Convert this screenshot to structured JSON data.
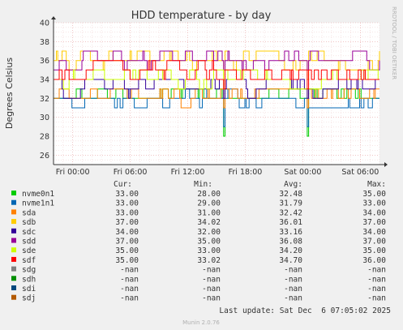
{
  "chart_data": {
    "type": "line",
    "title": "HDD temperature - by day",
    "ylabel": "Degrees Celsius",
    "side_label": "RRDTOOL / TOBI OETIKER",
    "ylim": [
      25,
      40
    ],
    "yticks": [
      "26",
      "28",
      "30",
      "32",
      "34",
      "36",
      "38",
      "40"
    ],
    "xlim_hours": [
      -2,
      32
    ],
    "xticks": [
      {
        "label": "Fri 00:00",
        "h": 0
      },
      {
        "label": "Fri 06:00",
        "h": 6
      },
      {
        "label": "Fri 12:00",
        "h": 12
      },
      {
        "label": "Fri 18:00",
        "h": 18
      },
      {
        "label": "Sat 00:00",
        "h": 24
      },
      {
        "label": "Sat 06:00",
        "h": 30
      }
    ],
    "grid": true,
    "legend_headers": {
      "cur": "Cur:",
      "min": "Min:",
      "avg": "Avg:",
      "max": "Max:"
    },
    "series": [
      {
        "name": "nvme0n1",
        "color": "#00cc00",
        "cur": "33.00",
        "min": "28.00",
        "avg": "32.48",
        "max": "35.00",
        "lo": 28,
        "hi": 35,
        "base": 32.5
      },
      {
        "name": "nvme1n1",
        "color": "#0066b3",
        "cur": "33.00",
        "min": "29.00",
        "avg": "31.79",
        "max": "33.00",
        "lo": 29,
        "hi": 33,
        "base": 31.8
      },
      {
        "name": "sda",
        "color": "#ff8000",
        "cur": "33.00",
        "min": "31.00",
        "avg": "32.42",
        "max": "34.00",
        "lo": 31,
        "hi": 34,
        "base": 32.4
      },
      {
        "name": "sdb",
        "color": "#ffcc00",
        "cur": "37.00",
        "min": "34.02",
        "avg": "36.01",
        "max": "37.00",
        "lo": 34,
        "hi": 37,
        "base": 36
      },
      {
        "name": "sdc",
        "color": "#330099",
        "cur": "34.00",
        "min": "32.00",
        "avg": "33.16",
        "max": "34.00",
        "lo": 32,
        "hi": 34,
        "base": 33.2
      },
      {
        "name": "sdd",
        "color": "#990099",
        "cur": "37.00",
        "min": "35.00",
        "avg": "36.08",
        "max": "37.00",
        "lo": 35,
        "hi": 37,
        "base": 36.1
      },
      {
        "name": "sde",
        "color": "#ccff00",
        "cur": "35.00",
        "min": "33.00",
        "avg": "34.20",
        "max": "35.00",
        "lo": 33,
        "hi": 35,
        "base": 34.2
      },
      {
        "name": "sdf",
        "color": "#ff0000",
        "cur": "35.00",
        "min": "33.02",
        "avg": "34.70",
        "max": "36.00",
        "lo": 33,
        "hi": 36,
        "base": 34.7
      },
      {
        "name": "sdg",
        "color": "#808080",
        "cur": "-nan",
        "min": "-nan",
        "avg": "-nan",
        "max": "-nan"
      },
      {
        "name": "sdh",
        "color": "#008f00",
        "cur": "-nan",
        "min": "-nan",
        "avg": "-nan",
        "max": "-nan"
      },
      {
        "name": "sdi",
        "color": "#00487d",
        "cur": "-nan",
        "min": "-nan",
        "avg": "-nan",
        "max": "-nan"
      },
      {
        "name": "sdj",
        "color": "#b35a00",
        "cur": "-nan",
        "min": "-nan",
        "avg": "-nan",
        "max": "-nan"
      }
    ],
    "last_update": "Last update: Sat Dec  6 07:05:02 2025",
    "footer": "Munin 2.0.76"
  }
}
